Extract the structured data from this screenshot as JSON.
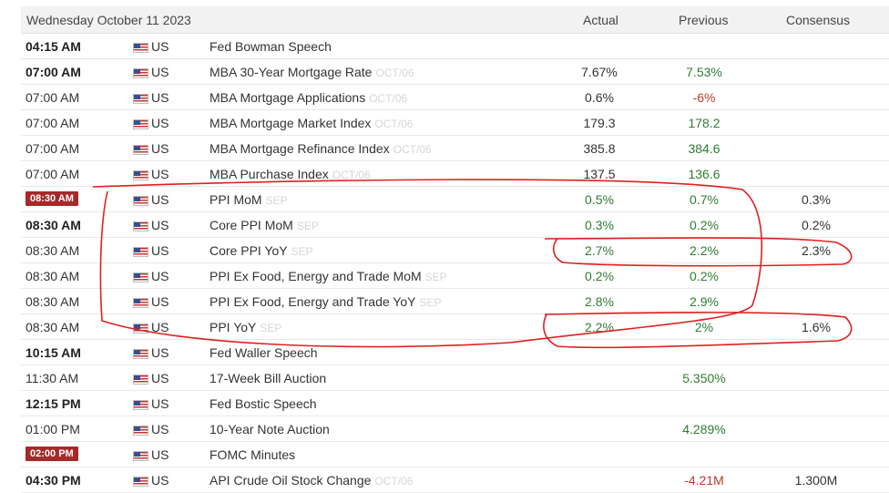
{
  "header": {
    "date": "Wednesday October 11 2023",
    "col_actual": "Actual",
    "col_previous": "Previous",
    "col_consensus": "Consensus"
  },
  "rows": [
    {
      "time": "04:15 AM",
      "time_style": "bold",
      "country": "US",
      "event": "Fed Bowman Speech",
      "period": "",
      "actual": "",
      "actual_color": "dark",
      "previous": "",
      "previous_color": "dark",
      "consensus": ""
    },
    {
      "time": "07:00 AM",
      "time_style": "bold",
      "country": "US",
      "event": "MBA 30-Year Mortgage Rate",
      "period": "OCT/06",
      "actual": "7.67%",
      "actual_color": "dark",
      "previous": "7.53%",
      "previous_color": "green",
      "consensus": ""
    },
    {
      "time": "07:00 AM",
      "time_style": "normal",
      "country": "US",
      "event": "MBA Mortgage Applications",
      "period": "OCT/06",
      "actual": "0.6%",
      "actual_color": "dark",
      "previous": "-6%",
      "previous_color": "red",
      "consensus": ""
    },
    {
      "time": "07:00 AM",
      "time_style": "normal",
      "country": "US",
      "event": "MBA Mortgage Market Index",
      "period": "OCT/06",
      "actual": "179.3",
      "actual_color": "dark",
      "previous": "178.2",
      "previous_color": "green",
      "consensus": ""
    },
    {
      "time": "07:00 AM",
      "time_style": "normal",
      "country": "US",
      "event": "MBA Mortgage Refinance Index",
      "period": "OCT/06",
      "actual": "385.8",
      "actual_color": "dark",
      "previous": "384.6",
      "previous_color": "green",
      "consensus": ""
    },
    {
      "time": "07:00 AM",
      "time_style": "normal",
      "country": "US",
      "event": "MBA Purchase Index",
      "period": "OCT/06",
      "actual": "137.5",
      "actual_color": "dark",
      "previous": "136.6",
      "previous_color": "green",
      "consensus": ""
    },
    {
      "time": "08:30 AM",
      "time_style": "badge",
      "country": "US",
      "event": "PPI MoM",
      "period": "SEP",
      "actual": "0.5%",
      "actual_color": "green",
      "previous": "0.7%",
      "previous_color": "green",
      "consensus": "0.3%"
    },
    {
      "time": "08:30 AM",
      "time_style": "bold",
      "country": "US",
      "event": "Core PPI MoM",
      "period": "SEP",
      "actual": "0.3%",
      "actual_color": "green",
      "previous": "0.2%",
      "previous_color": "green",
      "consensus": "0.2%"
    },
    {
      "time": "08:30 AM",
      "time_style": "normal",
      "country": "US",
      "event": "Core PPI YoY",
      "period": "SEP",
      "actual": "2.7%",
      "actual_color": "green",
      "previous": "2.2%",
      "previous_color": "green",
      "consensus": "2.3%"
    },
    {
      "time": "08:30 AM",
      "time_style": "normal",
      "country": "US",
      "event": "PPI Ex Food, Energy and Trade MoM",
      "period": "SEP",
      "actual": "0.2%",
      "actual_color": "green",
      "previous": "0.2%",
      "previous_color": "green",
      "consensus": ""
    },
    {
      "time": "08:30 AM",
      "time_style": "normal",
      "country": "US",
      "event": "PPI Ex Food, Energy and Trade YoY",
      "period": "SEP",
      "actual": "2.8%",
      "actual_color": "green",
      "previous": "2.9%",
      "previous_color": "green",
      "consensus": ""
    },
    {
      "time": "08:30 AM",
      "time_style": "normal",
      "country": "US",
      "event": "PPI YoY",
      "period": "SEP",
      "actual": "2.2%",
      "actual_color": "green",
      "previous": "2%",
      "previous_color": "green",
      "consensus": "1.6%"
    },
    {
      "time": "10:15 AM",
      "time_style": "bold",
      "country": "US",
      "event": "Fed Waller Speech",
      "period": "",
      "actual": "",
      "actual_color": "dark",
      "previous": "",
      "previous_color": "dark",
      "consensus": ""
    },
    {
      "time": "11:30 AM",
      "time_style": "normal",
      "country": "US",
      "event": "17-Week Bill Auction",
      "period": "",
      "actual": "",
      "actual_color": "dark",
      "previous": "5.350%",
      "previous_color": "green",
      "consensus": ""
    },
    {
      "time": "12:15 PM",
      "time_style": "bold",
      "country": "US",
      "event": "Fed Bostic Speech",
      "period": "",
      "actual": "",
      "actual_color": "dark",
      "previous": "",
      "previous_color": "dark",
      "consensus": ""
    },
    {
      "time": "01:00 PM",
      "time_style": "normal",
      "country": "US",
      "event": "10-Year Note Auction",
      "period": "",
      "actual": "",
      "actual_color": "dark",
      "previous": "4.289%",
      "previous_color": "green",
      "consensus": ""
    },
    {
      "time": "02:00 PM",
      "time_style": "badge",
      "country": "US",
      "event": "FOMC Minutes",
      "period": "",
      "actual": "",
      "actual_color": "dark",
      "previous": "",
      "previous_color": "dark",
      "consensus": ""
    },
    {
      "time": "04:30 PM",
      "time_style": "bold",
      "country": "US",
      "event": "API Crude Oil Stock Change",
      "period": "OCT/06",
      "actual": "",
      "actual_color": "dark",
      "previous": "-4.21M",
      "previous_color": "red",
      "consensus": "1.300M"
    }
  ],
  "annotation_color": "#e02020"
}
